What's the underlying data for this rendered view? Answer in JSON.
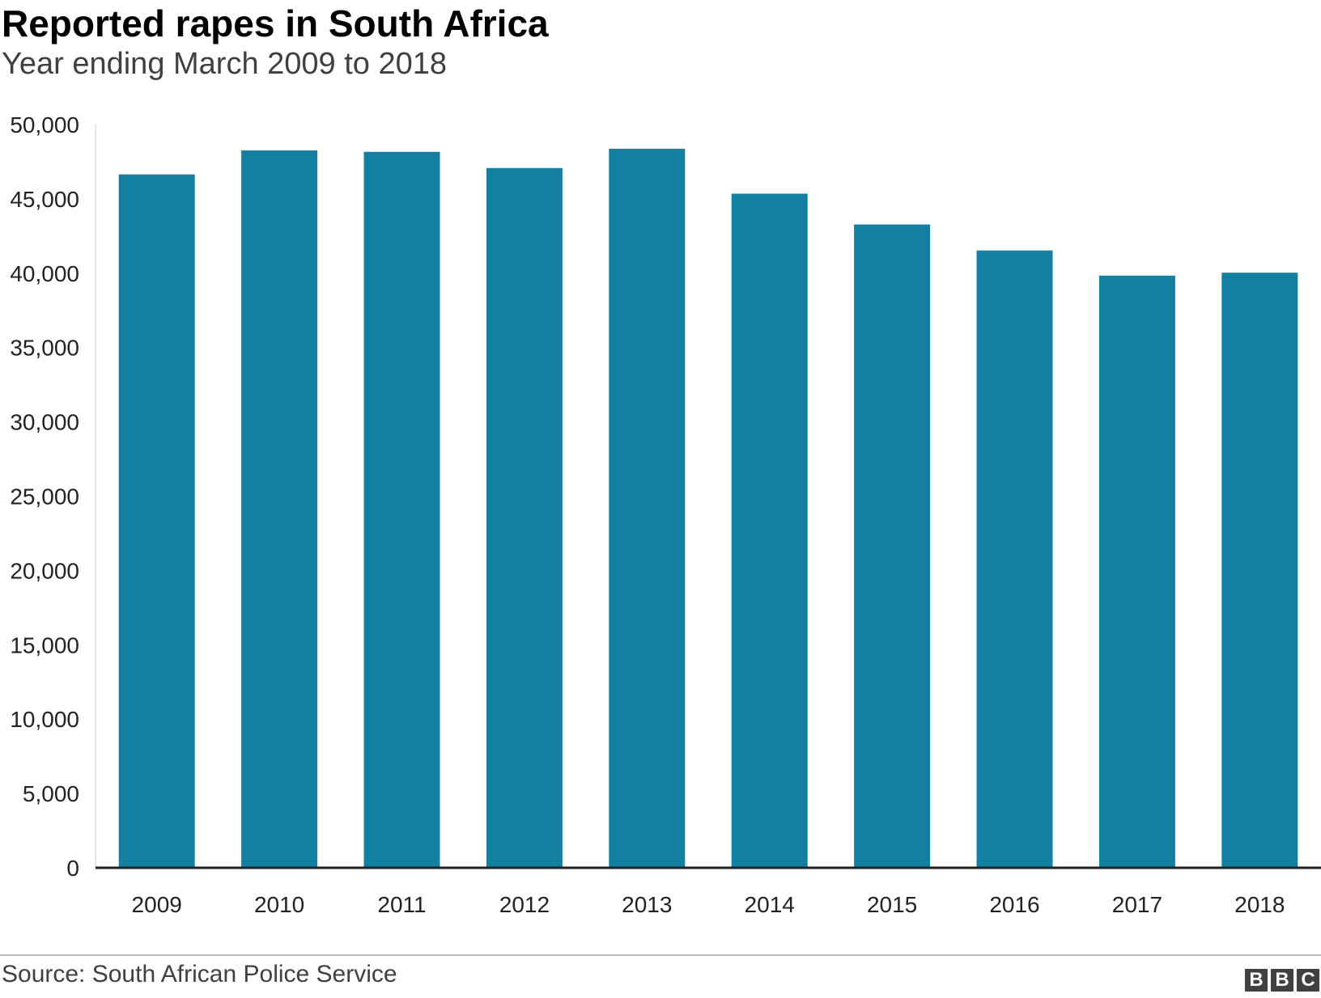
{
  "chart_data": {
    "type": "bar",
    "title": "Reported rapes in South Africa",
    "subtitle": "Year ending March 2009 to 2018",
    "xlabel": "",
    "ylabel": "",
    "categories": [
      "2009",
      "2010",
      "2011",
      "2012",
      "2013",
      "2014",
      "2015",
      "2016",
      "2017",
      "2018"
    ],
    "values": [
      46647,
      48259,
      48164,
      47075,
      48374,
      45350,
      43276,
      41530,
      39836,
      40035
    ],
    "ylim": [
      0,
      50000
    ],
    "yticks": [
      0,
      5000,
      10000,
      15000,
      20000,
      25000,
      30000,
      35000,
      40000,
      45000,
      50000
    ],
    "ytick_labels": [
      "0",
      "5,000",
      "10,000",
      "15,000",
      "20,000",
      "25,000",
      "30,000",
      "35,000",
      "40,000",
      "45,000",
      "50,000"
    ],
    "grid": false,
    "bar_color": "#1380a1"
  },
  "footer": {
    "source": "Source: South African Police Service",
    "logo_letters": [
      "B",
      "B",
      "C"
    ]
  }
}
